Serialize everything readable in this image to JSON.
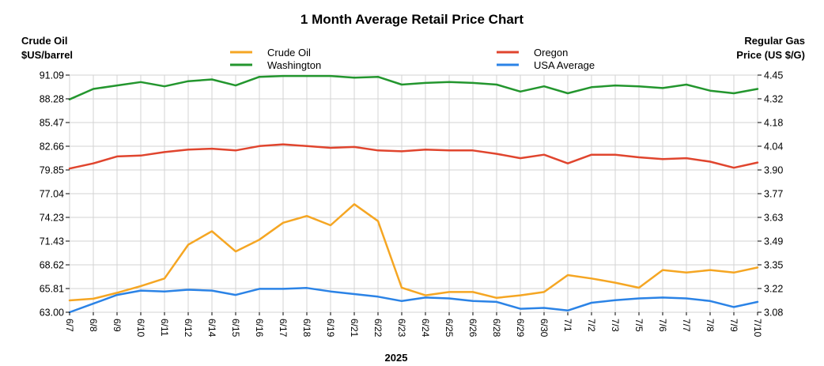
{
  "chart_data": {
    "type": "line",
    "title": "1 Month Average Retail Price Chart",
    "left_axis_label_line1": "Crude Oil",
    "left_axis_label_line2": "$US/barrel",
    "right_axis_label_line1": "Regular Gas",
    "right_axis_label_line2": "Price (US $/G)",
    "xlabel": "2025",
    "left_ylim": [
      63.0,
      91.09
    ],
    "right_ylim": [
      3.08,
      4.45
    ],
    "left_ticks": [
      "63.00",
      "65.81",
      "68.62",
      "71.43",
      "74.23",
      "77.04",
      "79.85",
      "82.66",
      "85.47",
      "88.28",
      "91.09"
    ],
    "right_ticks": [
      "3.08",
      "3.22",
      "3.35",
      "3.49",
      "3.63",
      "3.77",
      "3.90",
      "4.04",
      "4.18",
      "4.32",
      "4.45"
    ],
    "grid": true,
    "legend_placement": "top",
    "categories": [
      "6/7",
      "6/8",
      "6/9",
      "6/10",
      "6/11",
      "6/12",
      "6/14",
      "6/15",
      "6/16",
      "6/17",
      "6/18",
      "6/19",
      "6/21",
      "6/22",
      "6/23",
      "6/24",
      "6/25",
      "6/26",
      "6/28",
      "6/29",
      "6/30",
      "7/1",
      "7/2",
      "7/3",
      "7/5",
      "7/6",
      "7/7",
      "7/8",
      "7/9",
      "7/10"
    ],
    "series": [
      {
        "name": "Crude Oil",
        "axis": "left",
        "color": "#f5a623",
        "values": [
          64.4,
          64.6,
          65.3,
          66.1,
          67.0,
          71.0,
          72.6,
          70.2,
          71.6,
          73.6,
          74.4,
          73.3,
          75.8,
          73.8,
          65.9,
          65.0,
          65.4,
          65.4,
          64.7,
          65.0,
          65.4,
          67.4,
          67.0,
          66.5,
          65.9,
          68.0,
          67.7,
          68.0,
          67.7,
          68.3
        ]
      },
      {
        "name": "Oregon",
        "axis": "right",
        "color": "#e0452e",
        "values": [
          3.91,
          3.94,
          3.98,
          3.985,
          4.005,
          4.02,
          4.025,
          4.015,
          4.04,
          4.05,
          4.04,
          4.03,
          4.035,
          4.015,
          4.01,
          4.02,
          4.015,
          4.015,
          3.995,
          3.97,
          3.99,
          3.94,
          3.99,
          3.99,
          3.975,
          3.965,
          3.97,
          3.95,
          3.915,
          3.945
        ]
      },
      {
        "name": "Washington",
        "axis": "right",
        "color": "#23962e",
        "values": [
          4.31,
          4.37,
          4.39,
          4.41,
          4.385,
          4.415,
          4.425,
          4.39,
          4.44,
          4.445,
          4.445,
          4.445,
          4.435,
          4.44,
          4.395,
          4.405,
          4.41,
          4.405,
          4.395,
          4.355,
          4.385,
          4.345,
          4.38,
          4.39,
          4.385,
          4.375,
          4.395,
          4.36,
          4.345,
          4.37
        ]
      },
      {
        "name": "USA Average",
        "axis": "right",
        "color": "#2b83e6",
        "values": [
          3.08,
          3.13,
          3.18,
          3.205,
          3.2,
          3.21,
          3.205,
          3.18,
          3.215,
          3.215,
          3.22,
          3.2,
          3.185,
          3.17,
          3.145,
          3.165,
          3.16,
          3.145,
          3.14,
          3.1,
          3.105,
          3.09,
          3.135,
          3.15,
          3.16,
          3.165,
          3.16,
          3.145,
          3.11,
          3.14
        ]
      }
    ]
  }
}
